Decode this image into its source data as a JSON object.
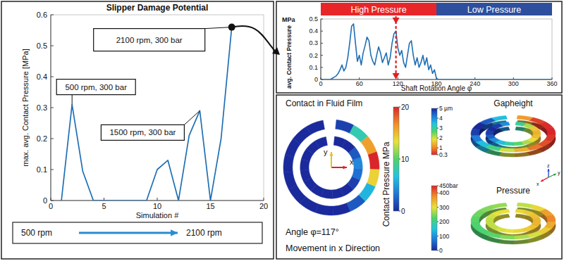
{
  "chart_data": [
    {
      "type": "line",
      "title": "Slipper Damage Potential",
      "xlabel": "Simulation #",
      "ylabel": "max. avg. Contact Pressure [MPa]",
      "x": [
        1,
        2,
        3,
        4,
        5,
        6,
        7,
        8,
        9,
        10,
        11,
        12,
        13,
        14,
        15,
        16,
        17
      ],
      "values": [
        0,
        0.31,
        0.095,
        0,
        0,
        0,
        0,
        0,
        0,
        0.1,
        0.13,
        0,
        0.21,
        0.29,
        0,
        0.2,
        0.56
      ],
      "color": "#1f6fb4",
      "xlim": [
        0,
        20
      ],
      "ylim": [
        0,
        0.6
      ],
      "xticks": [
        0,
        5,
        10,
        15,
        20
      ],
      "yticks": [
        0,
        0.1,
        0.2,
        0.3,
        0.4,
        0.5,
        0.6
      ],
      "grid": false,
      "annotations": [
        {
          "text": "500 rpm, 300 bar",
          "x": 2,
          "y": 0.31
        },
        {
          "text": "1500 rpm, 300 bar",
          "x": 14,
          "y": 0.29
        },
        {
          "text": "2100 rpm, 300 bar",
          "x": 17,
          "y": 0.56,
          "marker": "dot"
        }
      ],
      "sweep": {
        "from": "500 rpm",
        "to": "2100 rpm"
      }
    },
    {
      "type": "line",
      "xlabel": "Shaft Rotation Angle φ",
      "ylabel": "avg. Contact Pressure",
      "ylabel_unit": "MPa",
      "x": [
        0,
        3,
        6,
        9,
        12,
        15,
        18,
        21,
        24,
        27,
        30,
        33,
        36,
        39,
        42,
        45,
        48,
        51,
        54,
        57,
        60,
        63,
        66,
        69,
        72,
        75,
        78,
        81,
        84,
        87,
        90,
        93,
        96,
        99,
        102,
        105,
        108,
        111,
        114,
        117,
        120,
        123,
        126,
        129,
        132,
        135,
        138,
        141,
        144,
        147,
        150,
        153,
        156,
        159,
        162,
        165,
        168,
        171,
        174,
        177,
        180,
        183,
        240,
        300,
        360
      ],
      "values": [
        0,
        0,
        0,
        0,
        0,
        0,
        0.01,
        0.02,
        0.03,
        0.05,
        0.08,
        0.12,
        0.07,
        0.1,
        0.18,
        0.3,
        0.44,
        0.46,
        0.3,
        0.15,
        0.2,
        0.12,
        0.22,
        0.28,
        0.35,
        0.32,
        0.2,
        0.15,
        0.12,
        0.2,
        0.27,
        0.22,
        0.14,
        0.18,
        0.22,
        0.12,
        0.18,
        0.3,
        0.38,
        0.4,
        0.26,
        0.2,
        0.24,
        0.14,
        0.1,
        0.2,
        0.3,
        0.32,
        0.2,
        0.12,
        0.18,
        0.1,
        0.14,
        0.2,
        0.12,
        0.18,
        0.08,
        0.12,
        0.05,
        0.08,
        0.01,
        0,
        0,
        0,
        0
      ],
      "color": "#1f6fb4",
      "xlim": [
        0,
        360
      ],
      "ylim": [
        0,
        0.5
      ],
      "xticks": [
        0,
        60,
        120,
        180,
        240,
        300,
        360
      ],
      "yticks": [
        0,
        0.1,
        0.2,
        0.3,
        0.4,
        0.5
      ],
      "grid": false,
      "bands": [
        {
          "label": "High Pressure",
          "from": 0,
          "to": 180,
          "color": "#e8262a"
        },
        {
          "label": "Low Pressure",
          "from": 180,
          "to": 360,
          "color": "#2e4f9e"
        }
      ],
      "highlight": {
        "x": 117,
        "color": "#e02020"
      }
    },
    {
      "type": "heatmap",
      "title": "Contact in Fluid Film",
      "rings": [
        {
          "values": [
            0,
            0,
            0,
            0,
            0,
            0,
            0,
            0,
            0,
            2,
            6,
            14,
            20,
            16,
            8,
            1
          ]
        },
        {
          "values": [
            0,
            0,
            0,
            0,
            0,
            0,
            0,
            0,
            0,
            0,
            1,
            3,
            4,
            2,
            0,
            0
          ]
        }
      ],
      "colorbar": {
        "label": "Contact Pressure MPa",
        "range": [
          0,
          20
        ],
        "ticks": [
          0,
          10,
          20
        ],
        "colors": [
          "#1a2a9c",
          "#1f78d8",
          "#22c4e0",
          "#4fd36a",
          "#e8e23a",
          "#f0902a",
          "#d8262a"
        ]
      },
      "axes_labels": [
        "x",
        "y"
      ],
      "notes": [
        "Angle φ=117°",
        "Movement in x Direction"
      ]
    },
    {
      "type": "surface",
      "title": "Gapheight",
      "rings": [
        {
          "values": [
            3.5,
            4.5,
            5,
            4.8,
            4.2,
            3.5,
            2.8,
            2,
            1.4,
            0.9,
            0.6,
            0.4,
            0.3,
            0.35,
            0.5,
            1.2
          ]
        },
        {
          "values": [
            4,
            4.8,
            5,
            4.8,
            4.5,
            4,
            3.5,
            3,
            2.6,
            2.2,
            1.8,
            1.5,
            1.4,
            1.6,
            2.2,
            3
          ]
        }
      ],
      "colorbar": {
        "range": [
          0.3,
          5
        ],
        "ticks": [
          {
            "value": 5,
            "label": "5 µm"
          },
          4,
          3,
          2,
          1,
          0.3
        ],
        "colors": [
          "#d8262a",
          "#f0902a",
          "#e8e23a",
          "#4fd36a",
          "#22c4e0",
          "#1f78d8",
          "#1a2a9c"
        ]
      },
      "axes_labels": [
        "z",
        "y",
        "x"
      ]
    },
    {
      "type": "surface",
      "title": "Pressure",
      "rings": [
        {
          "values": [
            260,
            250,
            240,
            230,
            220,
            220,
            230,
            250,
            270,
            290,
            320,
            350,
            380,
            360,
            310,
            280
          ]
        },
        {
          "values": [
            300,
            300,
            290,
            280,
            280,
            280,
            290,
            300,
            310,
            320,
            330,
            340,
            340,
            330,
            320,
            310
          ]
        }
      ],
      "colorbar": {
        "range": [
          0,
          450
        ],
        "ticks": [
          {
            "value": 450,
            "label": "450bar"
          },
          400,
          300,
          200,
          100,
          0
        ],
        "colors": [
          "#1a2a9c",
          "#1f78d8",
          "#22c4e0",
          "#4fd36a",
          "#e8e23a",
          "#f0902a",
          "#d8262a"
        ]
      }
    }
  ]
}
